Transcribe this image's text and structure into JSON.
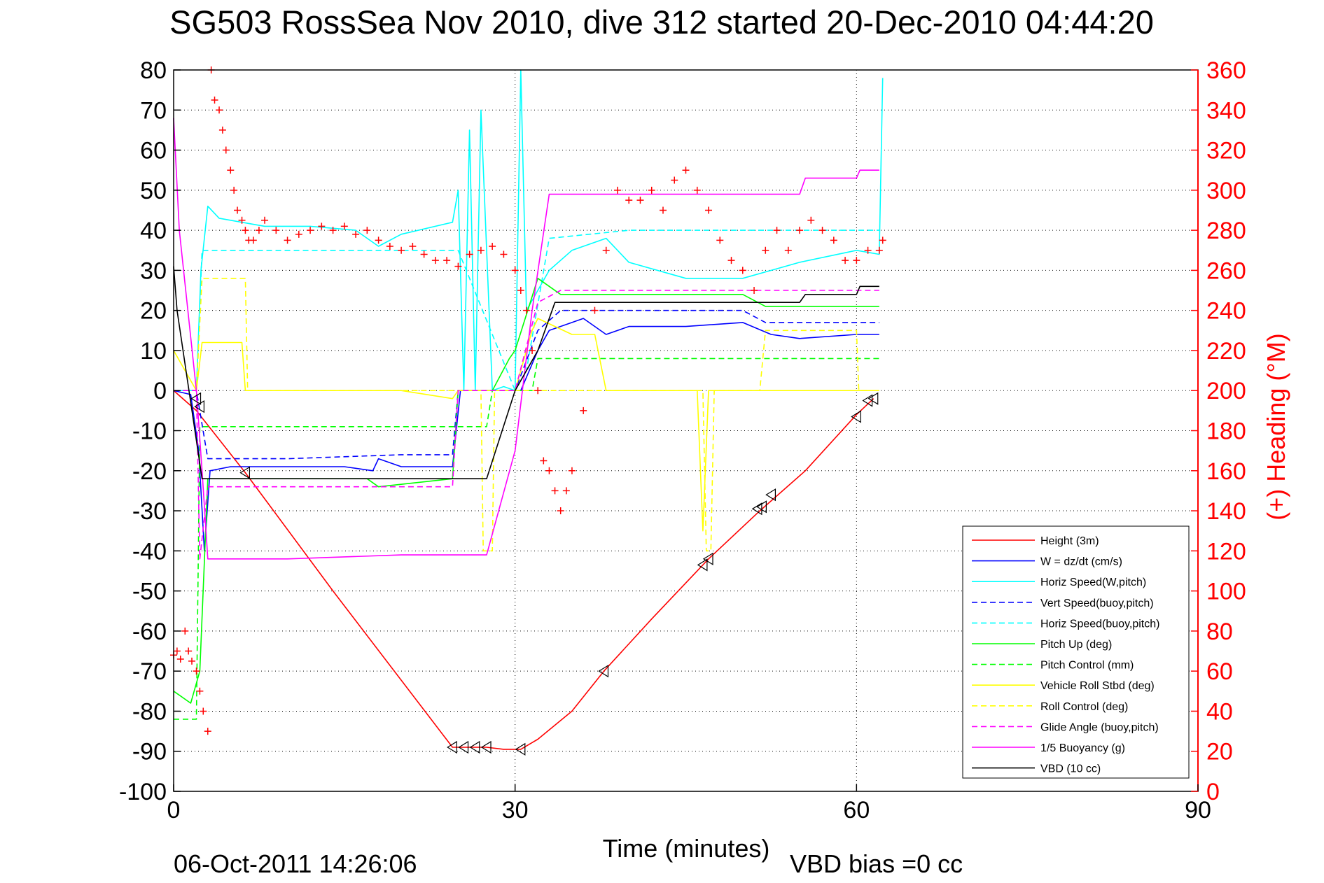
{
  "chart_data": {
    "type": "line",
    "title": "SG503 RossSea Nov 2010, dive 312 started 20-Dec-2010 04:44:20",
    "xlabel": "Time (minutes)",
    "ylabel_right": "(+) Heading (°M)",
    "footer_left": "06-Oct-2011 14:26:06",
    "footer_right": "VBD bias =0 cc",
    "xlim": [
      0,
      90
    ],
    "ylim": [
      -100,
      80
    ],
    "ylim_right": [
      0,
      360
    ],
    "xticks": [
      0,
      30,
      60,
      90
    ],
    "yticks": [
      -100,
      -90,
      -80,
      -70,
      -60,
      -50,
      -40,
      -30,
      -20,
      -10,
      0,
      10,
      20,
      30,
      40,
      50,
      60,
      70,
      80
    ],
    "yticks_right": [
      0,
      20,
      40,
      60,
      80,
      100,
      120,
      140,
      160,
      180,
      200,
      220,
      240,
      260,
      280,
      300,
      320,
      340,
      360
    ],
    "grid": true,
    "legend_position": "bottom-right",
    "series": [
      {
        "name": "Height (3m)",
        "color": "#ff0000",
        "style": "solid",
        "x": [
          0,
          2,
          6.3,
          14,
          24.5,
          26,
          27.5,
          29,
          30.5,
          32,
          35,
          37.8,
          42,
          47,
          51.5,
          55.5,
          60,
          61.5
        ],
        "y": [
          0,
          -5,
          -20.5,
          -50,
          -89,
          -89,
          -89,
          -89.5,
          -89.5,
          -87,
          -80,
          -70,
          -57,
          -42,
          -30,
          -20,
          -6,
          -2
        ]
      },
      {
        "name": "W = dz/dt (cm/s)",
        "color": "#0000ff",
        "style": "solid",
        "x": [
          0,
          1.5,
          2.2,
          2.7,
          3.2,
          5,
          10,
          15,
          17.5,
          18,
          20,
          24.5,
          25.2,
          27,
          29,
          30.5,
          32,
          33,
          35,
          36,
          38,
          40,
          45,
          50,
          52.5,
          55,
          60,
          62
        ],
        "y": [
          0,
          -1,
          -15,
          -40,
          -20,
          -19,
          -19,
          -19,
          -20,
          -17,
          -19,
          -19,
          0,
          0,
          0,
          0,
          10,
          15,
          17,
          18,
          14,
          16,
          16,
          17,
          14,
          13,
          14,
          14
        ]
      },
      {
        "name": "Horiz Speed(W,pitch)",
        "color": "#00ffff",
        "style": "solid",
        "x": [
          0,
          2,
          2.4,
          3,
          4,
          8,
          12,
          16,
          18,
          20,
          24.5,
          25,
          25.5,
          26,
          26.5,
          27,
          28,
          29,
          30,
          30.5,
          31,
          33,
          35,
          38,
          40,
          45,
          50,
          52.5,
          55,
          60,
          62,
          62.3
        ],
        "y": [
          0,
          0,
          30,
          46,
          43,
          41,
          41,
          40,
          36,
          39,
          42,
          50,
          0,
          65,
          0,
          70,
          0,
          1,
          0,
          80,
          20,
          30,
          35,
          38,
          32,
          28,
          28,
          30,
          32,
          35,
          34,
          78
        ]
      },
      {
        "name": "Vert Speed(buoy,pitch)",
        "color": "#0000ff",
        "style": "dashed",
        "x": [
          0,
          2,
          3,
          10,
          20,
          24.5,
          25,
          30,
          32,
          34,
          50,
          52,
          62
        ],
        "y": [
          0,
          0,
          -17,
          -17,
          -16,
          -16,
          0,
          0,
          15,
          20,
          20,
          17,
          17
        ]
      },
      {
        "name": "Horiz Speed(buoy,pitch)",
        "color": "#00ffff",
        "style": "dashed",
        "x": [
          0,
          2,
          2.5,
          3,
          24.5,
          25,
          30,
          31,
          33,
          40,
          50,
          62
        ],
        "y": [
          0,
          0,
          35,
          35,
          35,
          35,
          0,
          5,
          38,
          40,
          40,
          40
        ]
      },
      {
        "name": "Pitch Up (deg)",
        "color": "#00ff00",
        "style": "solid",
        "x": [
          0,
          1.5,
          2.3,
          3,
          10,
          17,
          18,
          24.5,
          25,
          28,
          29.5,
          30,
          32,
          34,
          40,
          50,
          52,
          62
        ],
        "y": [
          -75,
          -78,
          -70,
          -22,
          -22,
          -22,
          -24,
          -22,
          0,
          0,
          8,
          10,
          28,
          24,
          24,
          24,
          21,
          21
        ]
      },
      {
        "name": "Pitch Control (mm)",
        "color": "#00ff00",
        "style": "dashed",
        "x": [
          0,
          2,
          2.3,
          27.5,
          28,
          31.5,
          32,
          62
        ],
        "y": [
          -82,
          -82,
          -9,
          -9,
          0,
          0,
          8,
          8
        ]
      },
      {
        "name": "Vehicle Roll Stbd (deg)",
        "color": "#ffff00",
        "style": "solid",
        "x": [
          0,
          2,
          2.5,
          3,
          6,
          6.3,
          10,
          15,
          20,
          24.5,
          25,
          30,
          31.5,
          32,
          35,
          37,
          38,
          40,
          46,
          46.5,
          47,
          50,
          52,
          60,
          62
        ],
        "y": [
          10,
          0,
          12,
          12,
          12,
          0,
          0,
          0,
          0,
          -2,
          0,
          0,
          15,
          18,
          14,
          14,
          0,
          0,
          0,
          -35,
          0,
          0,
          0,
          0,
          0
        ]
      },
      {
        "name": "Roll Control (deg)",
        "color": "#ffff00",
        "style": "dashed",
        "x": [
          0,
          2,
          2.5,
          6.3,
          6.5,
          27,
          27.2,
          28,
          28.2,
          46.5,
          46.8,
          47.2,
          47.5,
          51.5,
          52,
          60,
          60.2,
          61,
          61.2
        ],
        "y": [
          0,
          0,
          28,
          28,
          0,
          0,
          -40,
          -40,
          0,
          0,
          -40,
          -40,
          0,
          0,
          15,
          15,
          0,
          0,
          0
        ]
      },
      {
        "name": "Glide Angle (buoy,pitch)",
        "color": "#ff00ff",
        "style": "dashed",
        "x": [
          0,
          2,
          2.3,
          3,
          10,
          24.5,
          25,
          30,
          32,
          34,
          50,
          62
        ],
        "y": [
          0,
          0,
          -42,
          -24,
          -24,
          -24,
          0,
          0,
          22,
          25,
          25,
          25
        ]
      },
      {
        "name": "1/5 Buoyancy (g)",
        "color": "#ff00ff",
        "style": "solid",
        "x": [
          0,
          0.5,
          2,
          2.5,
          3,
          10,
          20,
          27.5,
          30,
          31.5,
          33,
          40,
          50,
          55,
          55.5,
          60,
          60.3,
          62
        ],
        "y": [
          68,
          40,
          0,
          -20,
          -42,
          -42,
          -41,
          -41,
          -15,
          20,
          49,
          49,
          49,
          49,
          53,
          53,
          55,
          55
        ]
      },
      {
        "name": "VBD (10 cc)",
        "color": "#000000",
        "style": "solid",
        "x": [
          0,
          0.3,
          2.5,
          20,
          27.5,
          30,
          32,
          33.5,
          50,
          55,
          55.5,
          60,
          60.3,
          62
        ],
        "y": [
          31,
          20,
          -22,
          -22,
          -22,
          0,
          10,
          22,
          22,
          22,
          24,
          24,
          26,
          26
        ]
      }
    ],
    "heading": {
      "name": "Heading",
      "color": "#ff0000",
      "x": [
        0,
        0.3,
        0.6,
        1,
        1.3,
        1.6,
        2,
        2.3,
        2.6,
        3,
        3.3,
        3.6,
        4,
        4.3,
        4.6,
        5,
        5.3,
        5.6,
        6,
        6.3,
        6.6,
        7,
        7.5,
        8,
        9,
        10,
        11,
        12,
        13,
        14,
        15,
        16,
        17,
        18,
        19,
        20,
        21,
        22,
        23,
        24,
        25,
        26,
        27,
        28,
        29,
        30,
        30.5,
        31,
        31.5,
        32,
        32.5,
        33,
        33.5,
        34,
        34.5,
        35,
        36,
        37,
        38,
        39,
        40,
        41,
        42,
        43,
        44,
        45,
        46,
        47,
        48,
        49,
        50,
        51,
        52,
        53,
        54,
        55,
        56,
        57,
        58,
        59,
        60,
        61,
        62,
        62.3
      ],
      "y": [
        68,
        70,
        66,
        80,
        70,
        65,
        60,
        50,
        40,
        30,
        360,
        345,
        340,
        330,
        320,
        310,
        300,
        290,
        285,
        280,
        275,
        275,
        280,
        285,
        280,
        275,
        278,
        280,
        282,
        280,
        282,
        278,
        280,
        275,
        272,
        270,
        272,
        268,
        265,
        265,
        262,
        268,
        270,
        272,
        268,
        260,
        250,
        240,
        220,
        200,
        165,
        160,
        150,
        140,
        150,
        160,
        190,
        240,
        270,
        300,
        295,
        295,
        300,
        290,
        305,
        310,
        300,
        290,
        275,
        265,
        260,
        250,
        270,
        280,
        270,
        280,
        285,
        280,
        275,
        265,
        265,
        270,
        270,
        275
      ]
    },
    "triangle_markers": {
      "x": [
        2,
        2.3,
        6.3,
        24.5,
        25.5,
        26.5,
        27.5,
        30.5,
        37.8,
        46.5,
        47,
        51.3,
        51.7,
        52.5,
        60,
        61,
        61.5
      ],
      "y": [
        -2,
        -4,
        -20.5,
        -89,
        -89,
        -89,
        -89,
        -89.5,
        -70,
        -43.5,
        -42,
        -29.5,
        -29,
        -26,
        -6.5,
        -2.5,
        -2
      ]
    }
  }
}
